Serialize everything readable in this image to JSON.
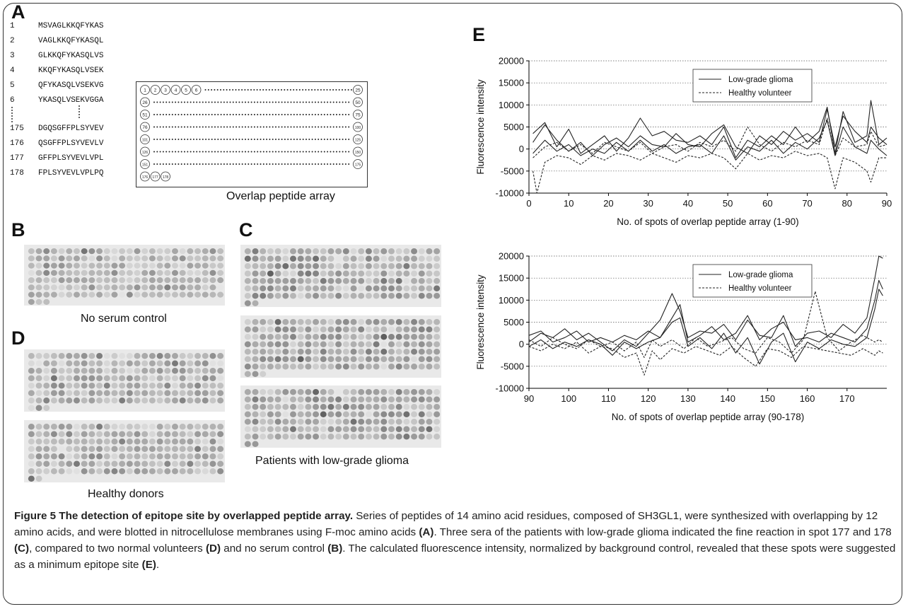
{
  "panels": {
    "A": {
      "label": "A",
      "sequences": [
        {
          "num": "1",
          "seq": "MSVAGLKKQFYKAS"
        },
        {
          "num": "2",
          "seq": "VAGLKKQFYKASQL"
        },
        {
          "num": "3",
          "seq": "GLKKQFYKASQLVS"
        },
        {
          "num": "4",
          "seq": "KKQFYKASQLVSEK"
        },
        {
          "num": "5",
          "seq": "QFYKASQLVSEKVG"
        },
        {
          "num": "6",
          "seq": "YKASQLVSEKVGGA"
        },
        {
          "num": "175",
          "seq": "DGQSGFFPLSYVEV"
        },
        {
          "num": "176",
          "seq": "QSGFFPLSYVEVLV"
        },
        {
          "num": "177",
          "seq": "GFFPLSYVEVLVPL"
        },
        {
          "num": "178",
          "seq": "FPLSYVEVLVPLPQ"
        }
      ],
      "array_rows": [
        {
          "start": [
            "1",
            "2",
            "3",
            "4",
            "5",
            "6"
          ],
          "end": "25"
        },
        {
          "start": [
            "26"
          ],
          "end": "50"
        },
        {
          "start": [
            "51"
          ],
          "end": "75"
        },
        {
          "start": [
            "76"
          ],
          "end": "100"
        },
        {
          "start": [
            "101"
          ],
          "end": "125"
        },
        {
          "start": [
            "126"
          ],
          "end": "150"
        },
        {
          "start": [
            "151"
          ],
          "end": "175"
        },
        {
          "start": [
            "176",
            "177",
            "178"
          ],
          "end": ""
        }
      ],
      "array_caption": "Overlap peptide array"
    },
    "B": {
      "label": "B",
      "caption": "No serum control"
    },
    "C": {
      "label": "C",
      "caption": "Patients with low-grade glioma"
    },
    "D": {
      "label": "D",
      "caption": "Healthy donors"
    },
    "E": {
      "label": "E"
    }
  },
  "chart_data": [
    {
      "type": "line",
      "ylabel": "Fluorescence intensity",
      "xlabel": "No. of spots of overlap peptide array (1-90)",
      "xlim": [
        0,
        90
      ],
      "ylim": [
        -10000,
        20000
      ],
      "xticks": [
        0,
        10,
        20,
        30,
        40,
        50,
        60,
        70,
        80,
        90
      ],
      "yticks": [
        -10000,
        -5000,
        0,
        5000,
        10000,
        15000,
        20000
      ],
      "grid": "horizontal dotted",
      "legend": [
        "Low-grade glioma",
        "Healthy volunteer"
      ],
      "legend_position": "top-right",
      "series": [
        {
          "name": "Low-grade glioma",
          "style": "solid",
          "x": [
            1,
            4,
            7,
            10,
            13,
            16,
            19,
            22,
            25,
            28,
            31,
            34,
            37,
            40,
            43,
            46,
            49,
            52,
            55,
            58,
            61,
            64,
            67,
            70,
            73,
            75,
            77,
            79,
            82,
            85,
            86,
            88,
            90
          ],
          "y": [
            3500,
            6000,
            500,
            4500,
            -1000,
            1000,
            3000,
            -500,
            2500,
            7000,
            3000,
            4000,
            2000,
            1500,
            3000,
            1000,
            5000,
            -2000,
            2000,
            500,
            3000,
            1000,
            5000,
            1500,
            4000,
            9500,
            -1000,
            8500,
            1500,
            3000,
            11000,
            1000,
            2500
          ]
        },
        {
          "name": "Low-grade glioma",
          "style": "solid",
          "x": [
            1,
            4,
            7,
            10,
            13,
            16,
            19,
            22,
            25,
            28,
            31,
            34,
            37,
            40,
            43,
            46,
            49,
            52,
            55,
            58,
            61,
            64,
            67,
            70,
            73,
            75,
            77,
            79,
            82,
            85,
            86,
            88,
            90
          ],
          "y": [
            1500,
            5500,
            2000,
            -500,
            1500,
            -1500,
            1000,
            2500,
            500,
            3000,
            1000,
            500,
            3500,
            1000,
            500,
            3500,
            5500,
            500,
            -1000,
            3000,
            1000,
            4000,
            2000,
            3500,
            1500,
            9000,
            500,
            7500,
            4000,
            1500,
            5000,
            2500,
            1000
          ]
        },
        {
          "name": "Low-grade glioma",
          "style": "solid",
          "x": [
            1,
            4,
            7,
            10,
            13,
            16,
            19,
            22,
            25,
            28,
            31,
            34,
            37,
            40,
            43,
            46,
            49,
            52,
            55,
            58,
            61,
            64,
            67,
            70,
            73,
            75,
            77,
            79,
            82,
            85,
            86,
            88,
            90
          ],
          "y": [
            -1000,
            2000,
            -500,
            1000,
            -1500,
            0,
            -1000,
            1500,
            -500,
            2000,
            -500,
            1000,
            -1000,
            500,
            1000,
            -1000,
            3000,
            -2500,
            500,
            -500,
            2000,
            -1000,
            1500,
            0,
            2500,
            6500,
            -1500,
            5000,
            500,
            -1000,
            2000,
            0,
            -1500
          ]
        },
        {
          "name": "Healthy volunteer",
          "style": "dashed",
          "x": [
            1,
            2,
            4,
            7,
            10,
            13,
            16,
            19,
            22,
            25,
            28,
            31,
            34,
            37,
            40,
            43,
            46,
            49,
            52,
            55,
            58,
            61,
            64,
            67,
            70,
            73,
            75,
            77,
            79,
            82,
            85,
            86,
            88,
            90
          ],
          "y": [
            -5000,
            -10000,
            -3000,
            -1500,
            -2000,
            -3500,
            -1500,
            -2500,
            -1000,
            -1500,
            -2500,
            -1000,
            -2000,
            -3000,
            -1500,
            -2000,
            -1000,
            -2000,
            -4500,
            -1000,
            -2500,
            -1500,
            -2000,
            -500,
            -1500,
            -1000,
            -2000,
            -9000,
            -2000,
            -3000,
            -5000,
            -7500,
            -2000,
            -2000
          ]
        },
        {
          "name": "Healthy volunteer",
          "style": "dashed",
          "x": [
            1,
            4,
            7,
            10,
            13,
            16,
            19,
            22,
            25,
            28,
            31,
            34,
            37,
            40,
            43,
            46,
            49,
            52,
            55,
            58,
            61,
            64,
            67,
            70,
            73,
            75,
            77,
            79,
            82,
            85,
            86,
            88,
            90
          ],
          "y": [
            -2000,
            500,
            1500,
            -500,
            1000,
            -1000,
            1500,
            500,
            -500,
            1500,
            -1000,
            500,
            1000,
            -500,
            1500,
            500,
            2000,
            -500,
            5000,
            1000,
            -500,
            1500,
            500,
            2000,
            1000,
            7000,
            -1500,
            2500,
            500,
            1000,
            4000,
            500,
            1000
          ]
        }
      ]
    },
    {
      "type": "line",
      "ylabel": "Fluorescence intensity",
      "xlabel": "No. of spots of overlap peptide array (90-178)",
      "xlim": [
        90,
        180
      ],
      "ylim": [
        -10000,
        20000
      ],
      "xticks": [
        90,
        100,
        110,
        120,
        130,
        140,
        150,
        160,
        170
      ],
      "yticks": [
        -10000,
        -5000,
        0,
        5000,
        10000,
        15000,
        20000
      ],
      "grid": "horizontal dotted",
      "legend": [
        "Low-grade glioma",
        "Healthy volunteer"
      ],
      "legend_position": "top-right",
      "series": [
        {
          "name": "Low-grade glioma",
          "style": "solid",
          "x": [
            90,
            93,
            96,
            99,
            102,
            105,
            108,
            111,
            114,
            117,
            120,
            123,
            126,
            128,
            130,
            133,
            136,
            139,
            142,
            145,
            148,
            151,
            154,
            157,
            160,
            163,
            166,
            169,
            172,
            175,
            177,
            178,
            179
          ],
          "y": [
            500,
            2500,
            1500,
            3500,
            1000,
            2500,
            500,
            -1500,
            1000,
            -500,
            2500,
            5500,
            11500,
            7500,
            1500,
            3000,
            2500,
            4500,
            1000,
            5500,
            2000,
            1500,
            6500,
            -500,
            2500,
            3000,
            1500,
            4500,
            2500,
            6000,
            15000,
            20000,
            19500
          ]
        },
        {
          "name": "Low-grade glioma",
          "style": "solid",
          "x": [
            90,
            93,
            96,
            99,
            102,
            105,
            108,
            111,
            114,
            117,
            120,
            123,
            126,
            128,
            130,
            133,
            136,
            139,
            142,
            145,
            148,
            151,
            154,
            157,
            160,
            163,
            166,
            169,
            172,
            175,
            177,
            178,
            179
          ],
          "y": [
            2000,
            3000,
            500,
            1500,
            3000,
            500,
            1500,
            500,
            2000,
            1000,
            3000,
            1500,
            6000,
            9000,
            500,
            2000,
            4000,
            1000,
            2500,
            6500,
            1000,
            3500,
            5000,
            1000,
            1500,
            500,
            2500,
            1500,
            500,
            3500,
            10000,
            14500,
            12500
          ]
        },
        {
          "name": "Low-grade glioma",
          "style": "solid",
          "x": [
            90,
            93,
            96,
            99,
            102,
            105,
            108,
            111,
            114,
            117,
            120,
            123,
            126,
            128,
            130,
            133,
            136,
            139,
            142,
            145,
            148,
            151,
            154,
            157,
            160,
            163,
            166,
            169,
            172,
            175,
            177,
            178,
            179
          ],
          "y": [
            -500,
            1000,
            -1000,
            500,
            -500,
            1000,
            0,
            -2500,
            500,
            -1000,
            500,
            1500,
            5000,
            6000,
            -500,
            1500,
            -1000,
            2500,
            -2000,
            1500,
            -4500,
            500,
            2500,
            -4000,
            500,
            -1000,
            1000,
            0,
            -500,
            1500,
            8000,
            12500,
            11000
          ]
        },
        {
          "name": "Healthy volunteer",
          "style": "dashed",
          "x": [
            90,
            93,
            96,
            99,
            102,
            105,
            108,
            111,
            114,
            117,
            119,
            121,
            123,
            126,
            129,
            132,
            135,
            138,
            141,
            144,
            147,
            150,
            153,
            156,
            159,
            162,
            165,
            168,
            171,
            174,
            177,
            178,
            179
          ],
          "y": [
            -500,
            -1500,
            0,
            -1000,
            500,
            -2000,
            -500,
            -1000,
            -3000,
            -2000,
            -7000,
            -1500,
            -3500,
            -1000,
            -2000,
            -500,
            -1500,
            -2500,
            -500,
            -3000,
            -5000,
            -1000,
            -1500,
            -3000,
            -500,
            -1000,
            -1500,
            -2000,
            -2500,
            -1000,
            -2500,
            -1500,
            -2000
          ]
        },
        {
          "name": "Healthy volunteer",
          "style": "dashed",
          "x": [
            90,
            93,
            96,
            99,
            102,
            105,
            108,
            111,
            114,
            117,
            119,
            121,
            123,
            126,
            129,
            132,
            135,
            138,
            141,
            144,
            147,
            150,
            153,
            156,
            159,
            162,
            165,
            168,
            171,
            174,
            177,
            178,
            179
          ],
          "y": [
            1000,
            -500,
            1500,
            0,
            -1000,
            1000,
            -500,
            500,
            -1500,
            500,
            -3000,
            1000,
            -500,
            1000,
            -1000,
            1500,
            -500,
            500,
            1500,
            -1000,
            -2000,
            1500,
            500,
            -2000,
            1000,
            12000,
            1500,
            -1500,
            500,
            2000,
            500,
            1000,
            500
          ]
        }
      ]
    }
  ],
  "caption": {
    "title": "Figure 5 The detection of epitope site by overlapped peptide array.",
    "s1": " Series of peptides of 14 amino acid residues, composed of SH3GL1, were synthesized with overlapping by 12 amino acids, and were blotted in nitrocellulose membranes using F-moc amino acids ",
    "ra": "(A)",
    "s2": ". Three sera of the patients with low-grade glioma indicated the fine reaction in spot 177 and 178 ",
    "rc": "(C)",
    "s3": ", compared to two normal volunteers ",
    "rd": "(D)",
    "s4": " and no serum control ",
    "rb": "(B)",
    "s5": ". The calculated fluorescence intensity, normalized by background control, revealed that these spots were suggested as a minimum epitope site ",
    "re": "(E)",
    "s6": "."
  }
}
